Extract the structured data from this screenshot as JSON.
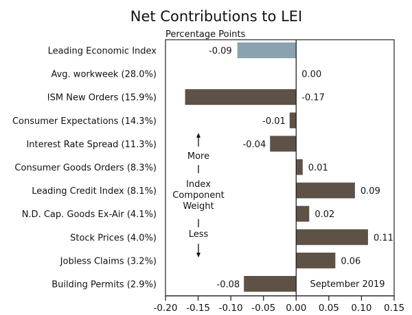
{
  "chart_data": {
    "type": "bar",
    "orientation": "horizontal",
    "title": "Net Contributions to LEI",
    "subtitle": "Percentage Points",
    "xlabel": "",
    "ylabel": "",
    "xlim": [
      -0.2,
      0.15
    ],
    "xticks": [
      -0.2,
      -0.15,
      -0.1,
      -0.05,
      0.0,
      0.05,
      0.1,
      0.15
    ],
    "xtick_labels": [
      "-0.20",
      "-0.15",
      "-0.10",
      "-0.05",
      "0.00",
      "0.05",
      "0.10",
      "0.15"
    ],
    "grid": false,
    "categories": [
      "Leading Economic Index",
      "Avg. workweek (28.0%)",
      "ISM New Orders (15.9%)",
      "Consumer Expectations (14.3%)",
      "Interest Rate Spread (11.3%)",
      "Consumer Goods Orders (8.3%)",
      "Leading Credit Index (8.1%)",
      "N.D. Cap. Goods Ex-Air (4.1%)",
      "Stock Prices (4.0%)",
      "Jobless Claims (3.2%)",
      "Building Permits (2.9%)"
    ],
    "values": [
      -0.09,
      0.0,
      -0.17,
      -0.01,
      -0.04,
      0.01,
      0.09,
      0.02,
      0.11,
      0.06,
      -0.08
    ],
    "value_labels": [
      "-0.09",
      "0.00",
      "-0.17",
      "-0.01",
      "-0.04",
      "0.01",
      "0.09",
      "0.02",
      "0.11",
      "0.06",
      "-0.08"
    ],
    "bar_colors": [
      "#8BA2B0",
      "#5E5246",
      "#5E5246",
      "#5E5246",
      "#5E5246",
      "#5E5246",
      "#5E5246",
      "#5E5246",
      "#5E5246",
      "#5E5246",
      "#5E5246"
    ],
    "annotations": {
      "date_note": "September 2019",
      "weight_axis": {
        "top": "More",
        "middle": [
          "Index",
          "Component",
          "Weight"
        ],
        "bottom": "Less"
      }
    }
  }
}
